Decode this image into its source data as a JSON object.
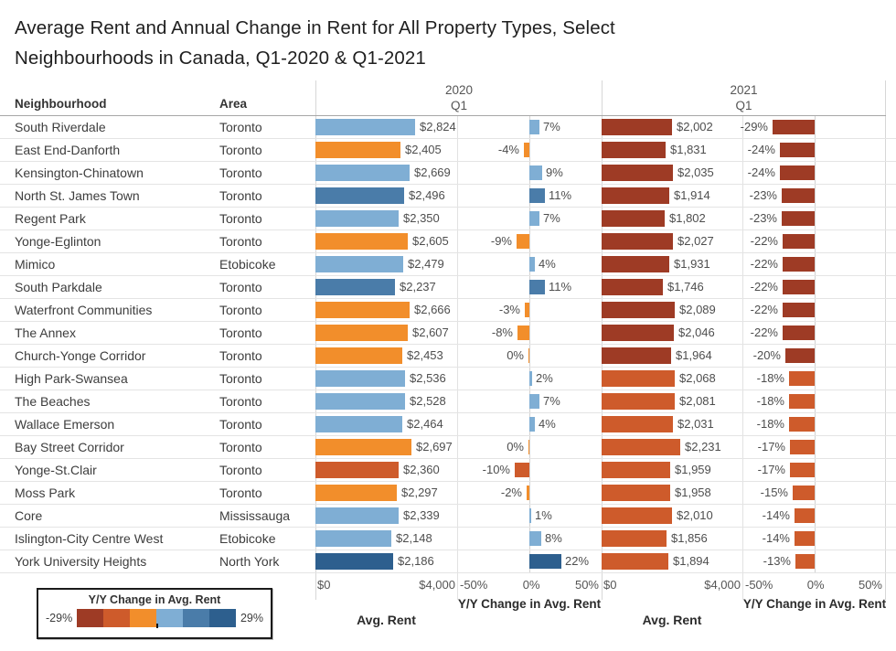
{
  "title": {
    "line1": "Average Rent and Annual Change in Rent for All Property Types, Select",
    "line2": "Neighbourhoods in Canada, Q1-2020 & Q1-2021"
  },
  "table_header": {
    "neighbourhood": "Neighbourhood",
    "area": "Area"
  },
  "groups": [
    {
      "year": "2020",
      "quarter": "Q1"
    },
    {
      "year": "2021",
      "quarter": "Q1"
    }
  ],
  "axes": {
    "rent": {
      "tick_min": "$0",
      "tick_max": "$4,000",
      "title": "Avg. Rent",
      "min": 0,
      "max": 4000
    },
    "change": {
      "tick_min": "-50%",
      "tick_mid": "0%",
      "tick_max": "50%",
      "title": "Y/Y Change in Avg. Rent",
      "min": -50,
      "max": 50
    }
  },
  "legend": {
    "title": "Y/Y Change in Avg. Rent",
    "min_label": "-29%",
    "max_label": "29%",
    "domain": [
      -29,
      29
    ],
    "colors": [
      "#9E3B25",
      "#CE5B2B",
      "#F28E2B",
      "#7FAED4",
      "#4A7CA9",
      "#2D5F8E"
    ]
  },
  "chart_data": {
    "type": "bar",
    "title": "Average Rent and Annual Change in Rent for All Property Types, Select Neighbourhoods in Canada, Q1-2020 & Q1-2021",
    "rent_axis": {
      "label": "Avg. Rent",
      "range": [
        0,
        4000
      ],
      "ticks": [
        "$0",
        "$4,000"
      ]
    },
    "change_axis": {
      "label": "Y/Y Change in Avg. Rent",
      "range": [
        -50,
        50
      ],
      "ticks": [
        "-50%",
        "0%",
        "50%"
      ]
    },
    "legend": {
      "label": "Y/Y Change in Avg. Rent",
      "domain": [
        -29,
        29
      ]
    },
    "grid": "row-separators",
    "rows": [
      {
        "neighbourhood": "South Riverdale",
        "area": "Toronto",
        "rent_2020": 2824,
        "change_2020": 7,
        "rent_2021": 2002,
        "change_2021": -29
      },
      {
        "neighbourhood": "East End-Danforth",
        "area": "Toronto",
        "rent_2020": 2405,
        "change_2020": -4,
        "rent_2021": 1831,
        "change_2021": -24
      },
      {
        "neighbourhood": "Kensington-Chinatown",
        "area": "Toronto",
        "rent_2020": 2669,
        "change_2020": 9,
        "rent_2021": 2035,
        "change_2021": -24
      },
      {
        "neighbourhood": "North St. James Town",
        "area": "Toronto",
        "rent_2020": 2496,
        "change_2020": 11,
        "rent_2021": 1914,
        "change_2021": -23
      },
      {
        "neighbourhood": "Regent Park",
        "area": "Toronto",
        "rent_2020": 2350,
        "change_2020": 7,
        "rent_2021": 1802,
        "change_2021": -23
      },
      {
        "neighbourhood": "Yonge-Eglinton",
        "area": "Toronto",
        "rent_2020": 2605,
        "change_2020": -9,
        "rent_2021": 2027,
        "change_2021": -22
      },
      {
        "neighbourhood": "Mimico",
        "area": "Etobicoke",
        "rent_2020": 2479,
        "change_2020": 4,
        "rent_2021": 1931,
        "change_2021": -22
      },
      {
        "neighbourhood": "South Parkdale",
        "area": "Toronto",
        "rent_2020": 2237,
        "change_2020": 11,
        "rent_2021": 1746,
        "change_2021": -22
      },
      {
        "neighbourhood": "Waterfront Communities",
        "area": "Toronto",
        "rent_2020": 2666,
        "change_2020": -3,
        "rent_2021": 2089,
        "change_2021": -22
      },
      {
        "neighbourhood": "The Annex",
        "area": "Toronto",
        "rent_2020": 2607,
        "change_2020": -8,
        "rent_2021": 2046,
        "change_2021": -22
      },
      {
        "neighbourhood": "Church-Yonge Corridor",
        "area": "Toronto",
        "rent_2020": 2453,
        "change_2020": 0,
        "rent_2021": 1964,
        "change_2021": -20
      },
      {
        "neighbourhood": "High Park-Swansea",
        "area": "Toronto",
        "rent_2020": 2536,
        "change_2020": 2,
        "rent_2021": 2068,
        "change_2021": -18
      },
      {
        "neighbourhood": "The Beaches",
        "area": "Toronto",
        "rent_2020": 2528,
        "change_2020": 7,
        "rent_2021": 2081,
        "change_2021": -18
      },
      {
        "neighbourhood": "Wallace Emerson",
        "area": "Toronto",
        "rent_2020": 2464,
        "change_2020": 4,
        "rent_2021": 2031,
        "change_2021": -18
      },
      {
        "neighbourhood": "Bay Street Corridor",
        "area": "Toronto",
        "rent_2020": 2697,
        "change_2020": 0,
        "rent_2021": 2231,
        "change_2021": -17
      },
      {
        "neighbourhood": "Yonge-St.Clair",
        "area": "Toronto",
        "rent_2020": 2360,
        "change_2020": -10,
        "rent_2021": 1959,
        "change_2021": -17
      },
      {
        "neighbourhood": "Moss Park",
        "area": "Toronto",
        "rent_2020": 2297,
        "change_2020": -2,
        "rent_2021": 1958,
        "change_2021": -15
      },
      {
        "neighbourhood": "Core",
        "area": "Mississauga",
        "rent_2020": 2339,
        "change_2020": 1,
        "rent_2021": 2010,
        "change_2021": -14
      },
      {
        "neighbourhood": "Islington-City Centre West",
        "area": "Etobicoke",
        "rent_2020": 2148,
        "change_2020": 8,
        "rent_2021": 1856,
        "change_2021": -14
      },
      {
        "neighbourhood": "York University Heights",
        "area": "North York",
        "rent_2020": 2186,
        "change_2020": 22,
        "rent_2021": 1894,
        "change_2021": -13
      }
    ]
  }
}
